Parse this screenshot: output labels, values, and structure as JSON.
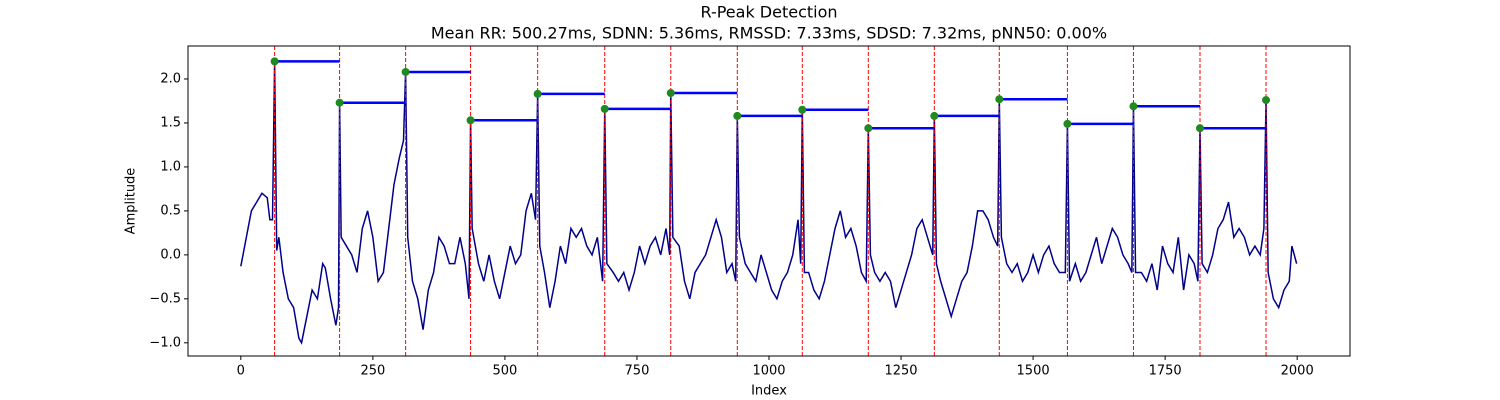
{
  "chart_data": {
    "type": "line",
    "title": "R-Peak Detection",
    "subtitle": "Mean RR: 500.27ms, SDNN: 5.36ms, RMSSD: 7.33ms, SDSD: 7.32ms, pNN50: 0.00%",
    "x_label": "Index",
    "y_label": "Amplitude",
    "xlim": [
      -100,
      2100
    ],
    "xticks": [
      0,
      250,
      500,
      750,
      1000,
      1250,
      1500,
      1750,
      2000
    ],
    "ylim": [
      -1.15,
      2.375
    ],
    "yticks": [
      {
        "value": -1,
        "label": "−1.0"
      },
      {
        "value": -0.5,
        "label": "−0.5"
      },
      {
        "value": 0,
        "label": "0.0"
      },
      0.5,
      {
        "value": 1,
        "label": "1.0"
      },
      1.5,
      {
        "value": 2,
        "label": "2.0"
      }
    ],
    "x": [
      0,
      20,
      40,
      50,
      55,
      60,
      64,
      68,
      72,
      80,
      90,
      100,
      110,
      115,
      125,
      135,
      145,
      155,
      160,
      170,
      180,
      185,
      187,
      190,
      200,
      210,
      220,
      230,
      240,
      250,
      260,
      270,
      280,
      290,
      300,
      308,
      312,
      316,
      325,
      335,
      345,
      355,
      365,
      375,
      385,
      395,
      405,
      415,
      425,
      432,
      435,
      438,
      450,
      460,
      470,
      480,
      490,
      500,
      510,
      520,
      530,
      540,
      550,
      558,
      562,
      566,
      575,
      585,
      595,
      605,
      615,
      625,
      635,
      645,
      655,
      665,
      675,
      685,
      689,
      693,
      705,
      715,
      725,
      735,
      745,
      755,
      765,
      775,
      785,
      795,
      805,
      812,
      814,
      818,
      830,
      840,
      850,
      860,
      870,
      880,
      890,
      900,
      910,
      920,
      930,
      937,
      940,
      944,
      955,
      965,
      975,
      985,
      995,
      1005,
      1015,
      1025,
      1035,
      1045,
      1055,
      1060,
      1063,
      1067,
      1075,
      1085,
      1095,
      1105,
      1115,
      1125,
      1135,
      1145,
      1155,
      1165,
      1175,
      1184,
      1188,
      1192,
      1200,
      1210,
      1220,
      1230,
      1240,
      1250,
      1260,
      1270,
      1280,
      1290,
      1300,
      1310,
      1313,
      1317,
      1325,
      1335,
      1345,
      1355,
      1365,
      1375,
      1385,
      1395,
      1405,
      1415,
      1425,
      1433,
      1436,
      1440,
      1450,
      1460,
      1470,
      1480,
      1490,
      1500,
      1510,
      1520,
      1530,
      1540,
      1550,
      1561,
      1565,
      1569,
      1580,
      1590,
      1600,
      1610,
      1620,
      1630,
      1640,
      1650,
      1660,
      1670,
      1680,
      1687,
      1690,
      1694,
      1705,
      1715,
      1725,
      1735,
      1745,
      1755,
      1765,
      1775,
      1785,
      1795,
      1805,
      1812,
      1816,
      1820,
      1830,
      1840,
      1850,
      1860,
      1870,
      1880,
      1890,
      1900,
      1910,
      1920,
      1930,
      1937,
      1941,
      1945,
      1955,
      1965,
      1975,
      1985,
      1990,
      1999
    ],
    "series": [
      {
        "color": "#00008b",
        "values": [
          -0.13,
          0.5,
          0.7,
          0.65,
          0.4,
          0.4,
          2.2,
          0.05,
          0.2,
          -0.2,
          -0.5,
          -0.6,
          -0.95,
          -1.0,
          -0.7,
          -0.4,
          -0.5,
          -0.1,
          -0.15,
          -0.5,
          -0.8,
          -0.6,
          1.73,
          0.2,
          0.1,
          0.0,
          -0.2,
          0.3,
          0.5,
          0.2,
          -0.3,
          -0.2,
          0.3,
          0.8,
          1.1,
          1.3,
          2.08,
          0.2,
          -0.3,
          -0.5,
          -0.85,
          -0.4,
          -0.2,
          0.2,
          0.1,
          -0.1,
          -0.1,
          0.2,
          -0.1,
          -0.5,
          1.53,
          0.3,
          -0.1,
          -0.3,
          0.0,
          -0.3,
          -0.5,
          -0.2,
          0.1,
          -0.1,
          0.0,
          0.5,
          0.7,
          0.4,
          1.83,
          0.1,
          -0.2,
          -0.6,
          -0.3,
          0.1,
          -0.1,
          0.3,
          0.2,
          0.3,
          0.1,
          0.0,
          0.2,
          -0.3,
          1.66,
          -0.1,
          -0.2,
          -0.3,
          -0.2,
          -0.4,
          -0.2,
          0.1,
          -0.1,
          0.1,
          0.2,
          0.0,
          0.3,
          0.0,
          1.84,
          0.2,
          0.1,
          -0.3,
          -0.5,
          -0.2,
          -0.1,
          0.0,
          0.2,
          0.4,
          0.2,
          -0.2,
          -0.1,
          -0.3,
          1.58,
          0.2,
          -0.1,
          -0.2,
          -0.3,
          0.0,
          -0.2,
          -0.4,
          -0.5,
          -0.3,
          -0.2,
          0.0,
          0.4,
          -0.1,
          1.65,
          -0.2,
          -0.2,
          -0.4,
          -0.5,
          -0.3,
          0.0,
          0.3,
          0.5,
          0.2,
          0.3,
          0.1,
          -0.2,
          -0.3,
          1.44,
          0.0,
          -0.2,
          -0.3,
          -0.2,
          -0.3,
          -0.6,
          -0.4,
          -0.2,
          0.0,
          0.3,
          0.4,
          0.2,
          0.0,
          1.58,
          -0.1,
          -0.3,
          -0.5,
          -0.7,
          -0.5,
          -0.3,
          -0.2,
          0.1,
          0.5,
          0.5,
          0.4,
          0.2,
          0.1,
          1.77,
          0.2,
          -0.1,
          -0.2,
          -0.1,
          -0.3,
          -0.2,
          0.0,
          -0.2,
          0.0,
          0.1,
          -0.1,
          -0.2,
          -0.2,
          1.49,
          -0.3,
          -0.1,
          -0.3,
          -0.2,
          0.0,
          0.2,
          -0.1,
          0.1,
          0.3,
          0.2,
          0.0,
          -0.1,
          -0.2,
          1.69,
          -0.2,
          -0.2,
          -0.3,
          -0.1,
          -0.4,
          0.1,
          -0.1,
          -0.2,
          0.2,
          -0.4,
          0.0,
          -0.1,
          -0.3,
          1.44,
          -0.1,
          -0.2,
          0.0,
          0.3,
          0.4,
          0.6,
          0.2,
          0.3,
          0.2,
          0.0,
          0.1,
          0.0,
          0.3,
          1.76,
          -0.2,
          -0.5,
          -0.6,
          -0.4,
          -0.3,
          0.1,
          -0.1
        ]
      }
    ],
    "peaks": {
      "x": [
        64,
        187,
        312,
        435,
        562,
        689,
        814,
        940,
        1063,
        1188,
        1313,
        1436,
        1565,
        1690,
        1816,
        1941
      ],
      "values": [
        2.2,
        1.73,
        2.08,
        1.53,
        1.83,
        1.66,
        1.84,
        1.58,
        1.65,
        1.44,
        1.58,
        1.77,
        1.49,
        1.69,
        1.44,
        1.76
      ],
      "color": "#1f8a1f",
      "line_color": "#ff0000",
      "rr_color": "#0000ff"
    }
  }
}
